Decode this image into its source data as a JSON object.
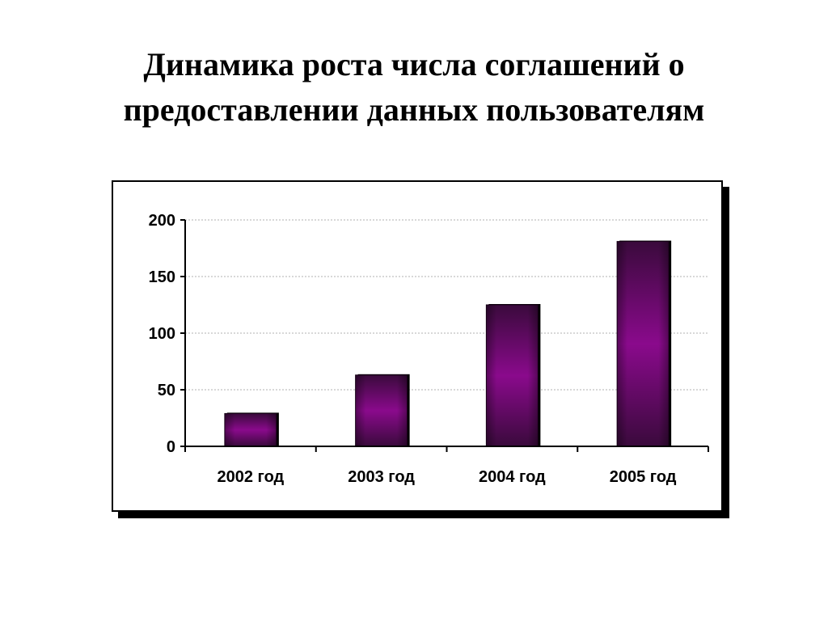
{
  "title": {
    "line1": "Динамика роста числа соглашений о",
    "line2": "предоставлении данных пользователям"
  },
  "colors": {
    "bar_dark": "#3a0a3c",
    "bar_light": "#8a0a8c",
    "gridline": "#b0b0b0",
    "axis": "#000000",
    "frame_shadow": "#000000"
  },
  "chart_data": {
    "type": "bar",
    "title": "",
    "xlabel": "",
    "ylabel": "",
    "categories": [
      "2002 год",
      "2003 год",
      "2004 год",
      "2005 год"
    ],
    "values": [
      29,
      63,
      125,
      181
    ],
    "ylim": [
      0,
      200
    ],
    "yticks": [
      0,
      50,
      100,
      150,
      200
    ],
    "grid": true,
    "legend": "none"
  }
}
